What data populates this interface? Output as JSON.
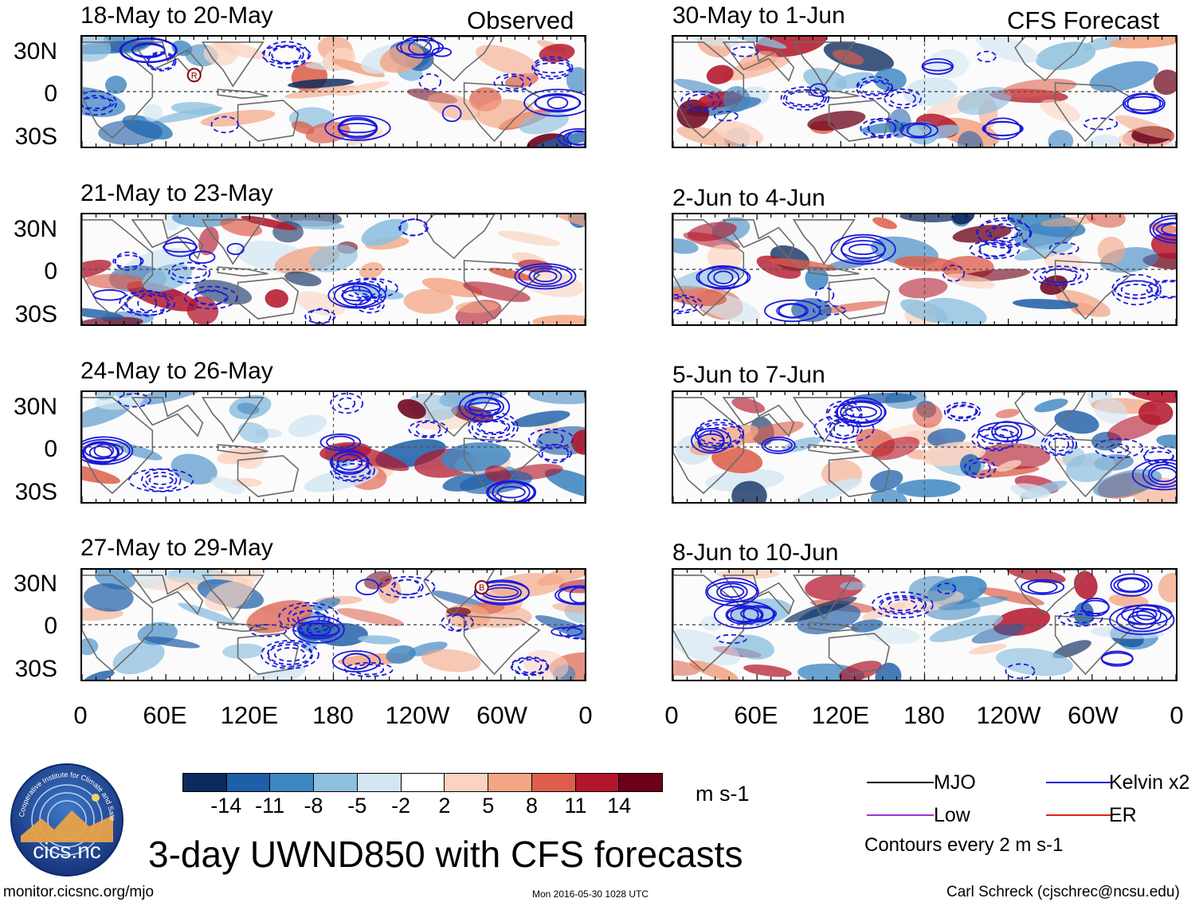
{
  "headers": {
    "observed": "Observed",
    "forecast": "CFS Forecast"
  },
  "lat_labels": [
    "30N",
    "0",
    "30S"
  ],
  "lon_labels": [
    "0",
    "60E",
    "120E",
    "180",
    "120W",
    "60W",
    "0"
  ],
  "left_panels": [
    {
      "title": "18-May to 20-May",
      "variant": 0,
      "marker": "R"
    },
    {
      "title": "21-May to 23-May",
      "variant": 1,
      "marker": ""
    },
    {
      "title": "24-May to 26-May",
      "variant": 2,
      "marker": ""
    },
    {
      "title": "27-May to 29-May",
      "variant": 3,
      "marker": "B"
    }
  ],
  "right_panels": [
    {
      "title": "30-May to 1-Jun",
      "variant": 4
    },
    {
      "title": "2-Jun to 4-Jun",
      "variant": 5
    },
    {
      "title": "5-Jun to 7-Jun",
      "variant": 6
    },
    {
      "title": "8-Jun to 10-Jun",
      "variant": 7
    }
  ],
  "colorbar": {
    "colors": [
      "#0b2a5e",
      "#1f5fa8",
      "#3f87c2",
      "#8fc0df",
      "#d3e6f2",
      "#ffffff",
      "#fbd3c0",
      "#f3a584",
      "#dd5f4b",
      "#b3162c",
      "#6b0018"
    ],
    "labels": [
      "-14",
      "-11",
      "-8",
      "-5",
      "-2",
      "2",
      "5",
      "8",
      "11",
      "14"
    ],
    "unit": "m s-1"
  },
  "legend": {
    "items": [
      {
        "label": "MJO",
        "color": "#000000"
      },
      {
        "label": "Kelvin x2",
        "color": "#1a1adc"
      },
      {
        "label": "Low",
        "color": "#9b30d9"
      },
      {
        "label": "ER",
        "color": "#d9261c"
      }
    ],
    "note": "Contours every 2 m s-1"
  },
  "logo_text": "cics.nc",
  "logo_ring_text": "Cooperative Institute for Climate and Satellites",
  "main_title": "3-day UWND850 with CFS forecasts",
  "footer": {
    "url": "monitor.cicsnc.org/mjo",
    "timestamp": "Mon 2016-05-30 1028 UTC",
    "author": "Carl Schreck (cjschrec@ncsu.edu)"
  }
}
